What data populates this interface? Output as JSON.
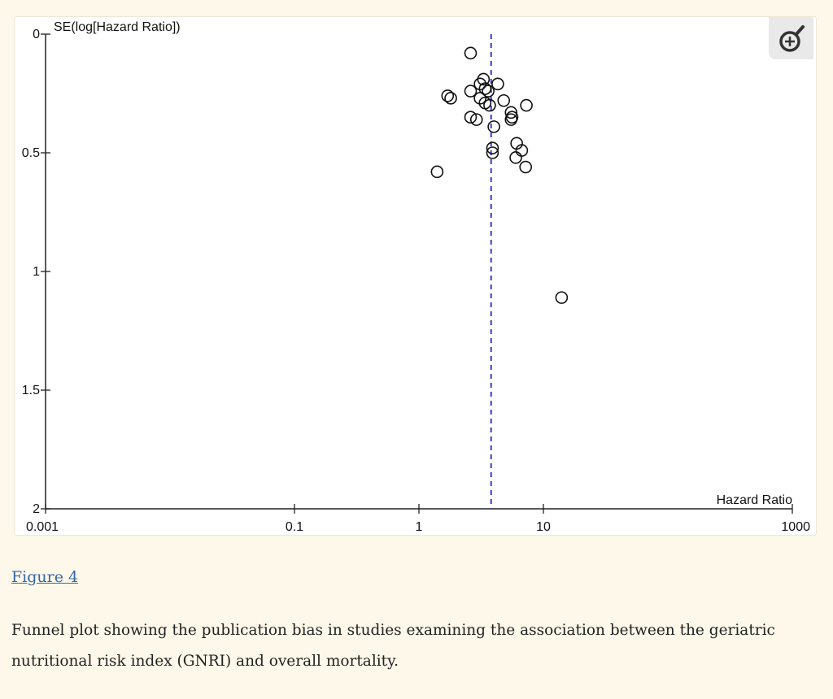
{
  "figure": {
    "link_label": "Figure 4",
    "caption_line1": "Funnel plot showing the publication bias in studies examining the association between the geriatric",
    "caption_line2": "nutritional risk index (GNRI) and overall mortality."
  },
  "zoom_button": {
    "icon": "zoom-in-icon"
  },
  "colors": {
    "page_background": "#fdf8ea",
    "reference_line": "#3b3bcc",
    "link": "#3567a6"
  },
  "chart_data": {
    "type": "scatter",
    "title": "",
    "xlabel": "Hazard Ratio",
    "ylabel": "SE(log[Hazard Ratio])",
    "x_scale": "log",
    "xlim": [
      0.001,
      1000
    ],
    "ylim": [
      0,
      2
    ],
    "y_inverted": true,
    "x_ticks": [
      "0.001",
      "0.1",
      "1",
      "10",
      "1000"
    ],
    "y_ticks": [
      "0",
      "0.5",
      "1",
      "1.5",
      "2"
    ],
    "reference_line": {
      "x": 3.8,
      "style": "dashed"
    },
    "grid": false,
    "legend": "none",
    "points": [
      {
        "x": 2.6,
        "y": 0.08
      },
      {
        "x": 3.3,
        "y": 0.19
      },
      {
        "x": 3.1,
        "y": 0.21
      },
      {
        "x": 4.3,
        "y": 0.21
      },
      {
        "x": 2.6,
        "y": 0.24
      },
      {
        "x": 3.4,
        "y": 0.23
      },
      {
        "x": 3.6,
        "y": 0.24
      },
      {
        "x": 1.7,
        "y": 0.26
      },
      {
        "x": 1.8,
        "y": 0.27
      },
      {
        "x": 3.1,
        "y": 0.27
      },
      {
        "x": 4.8,
        "y": 0.28
      },
      {
        "x": 3.4,
        "y": 0.29
      },
      {
        "x": 7.3,
        "y": 0.3
      },
      {
        "x": 3.7,
        "y": 0.3
      },
      {
        "x": 5.5,
        "y": 0.33
      },
      {
        "x": 5.6,
        "y": 0.35
      },
      {
        "x": 2.6,
        "y": 0.35
      },
      {
        "x": 2.9,
        "y": 0.36
      },
      {
        "x": 5.5,
        "y": 0.36
      },
      {
        "x": 4.0,
        "y": 0.39
      },
      {
        "x": 6.1,
        "y": 0.46
      },
      {
        "x": 3.9,
        "y": 0.48
      },
      {
        "x": 6.7,
        "y": 0.49
      },
      {
        "x": 3.9,
        "y": 0.5
      },
      {
        "x": 6.0,
        "y": 0.52
      },
      {
        "x": 7.2,
        "y": 0.56
      },
      {
        "x": 1.4,
        "y": 0.58
      },
      {
        "x": 14.0,
        "y": 1.11
      }
    ]
  }
}
